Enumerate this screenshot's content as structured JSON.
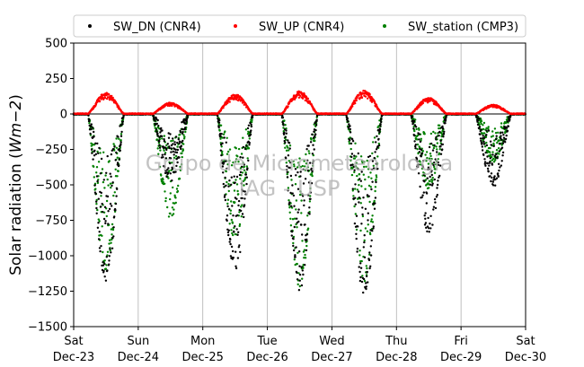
{
  "chart_data": {
    "type": "scatter",
    "ylabel_text": "Solar radiation (",
    "ylabel_units": "Wm−2",
    "ylabel_close": ")",
    "ylim": [
      -1500,
      500
    ],
    "yticks": [
      500,
      250,
      0,
      -250,
      -500,
      -750,
      -1000,
      -1250,
      -1500
    ],
    "ytick_labels": [
      "500",
      "250",
      "0",
      "−250",
      "−500",
      "−750",
      "−1000",
      "−1250",
      "−1500"
    ],
    "xlim": [
      "Dec-23",
      "Dec-30"
    ],
    "xticks": [
      {
        "day": "Sat",
        "date": "Dec-23"
      },
      {
        "day": "Sun",
        "date": "Dec-24"
      },
      {
        "day": "Mon",
        "date": "Dec-25"
      },
      {
        "day": "Tue",
        "date": "Dec-26"
      },
      {
        "day": "Wed",
        "date": "Dec-27"
      },
      {
        "day": "Thu",
        "date": "Dec-28"
      },
      {
        "day": "Fri",
        "date": "Dec-29"
      },
      {
        "day": "Sat",
        "date": "Dec-30"
      }
    ],
    "grid": "vertical",
    "legend_position": "top",
    "series": [
      {
        "name": "SW_DN (CNR4)",
        "color": "#000000",
        "daily_peak_values": [
          -1180,
          -480,
          -1120,
          -1250,
          -1320,
          -860,
          -520
        ]
      },
      {
        "name": "SW_UP (CNR4)",
        "color": "#ff0000",
        "daily_peak_values": [
          150,
          80,
          140,
          160,
          165,
          115,
          65
        ]
      },
      {
        "name": "SW_station (CMP3)",
        "color": "#008000",
        "daily_peak_values": [
          -1100,
          -740,
          -900,
          -1220,
          -1180,
          -540,
          -350
        ]
      }
    ],
    "watermark": [
      "Grupo de Micrometeorologia",
      "IAG - USP"
    ]
  }
}
